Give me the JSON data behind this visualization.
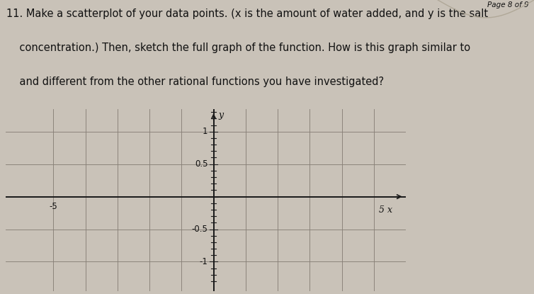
{
  "background_color": "#c9c2b8",
  "page_label": "Page 8 of 9",
  "question_text_line1": "11. Make a scatterplot of your data points. (x is the amount of water added, and y is the salt",
  "question_text_line2": "    concentration.) Then, sketch the full graph of the function. How is this graph similar to",
  "question_text_line3": "    and different from the other rational functions you have investigated?",
  "grid_bg": "#c9c2b8",
  "grid_line_color": "#888078",
  "axis_color": "#1a1a1a",
  "tick_color": "#1a1a1a",
  "label_color": "#111111",
  "x_label": "x",
  "y_label": "y",
  "x_min": -6.5,
  "x_max": 6.0,
  "y_min": -1.45,
  "y_max": 1.35,
  "grid_x": [
    -5,
    -4,
    -3,
    -2,
    -1,
    0,
    1,
    2,
    3,
    4,
    5
  ],
  "grid_y": [
    -1.0,
    -0.5,
    0.0,
    0.5,
    1.0
  ],
  "font_size_question": 10.5,
  "font_size_axis_label": 9,
  "font_size_tick": 8.5,
  "font_size_page": 7.5,
  "x_tick_label_neg": "-5",
  "x_tick_label_pos": "5",
  "x_tick_label_neg_val": -5,
  "x_tick_label_pos_val": 5,
  "y_tick_labels": {
    "1.0": "1",
    "0.5": "0.5",
    "-0.5": "-0.5",
    "-1.0": "-1"
  }
}
